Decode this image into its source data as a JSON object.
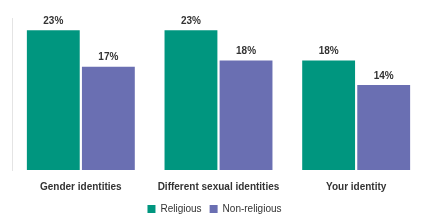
{
  "chart_data": {
    "type": "bar",
    "categories": [
      "Gender identities",
      "Different sexual identities",
      "Your identity"
    ],
    "series": [
      {
        "name": "Religious",
        "color": "#00967f",
        "values": [
          23,
          23,
          18
        ],
        "value_labels": [
          "23%",
          "23%",
          "18%"
        ]
      },
      {
        "name": "Non-religious",
        "color": "#6a6fb2",
        "values": [
          17,
          18,
          14
        ],
        "value_labels": [
          "17%",
          "18%",
          "14%"
        ]
      }
    ],
    "ylim": [
      0,
      25
    ],
    "grid": false,
    "legend": "bottom",
    "data_labels": true,
    "tick_labels": "x"
  }
}
